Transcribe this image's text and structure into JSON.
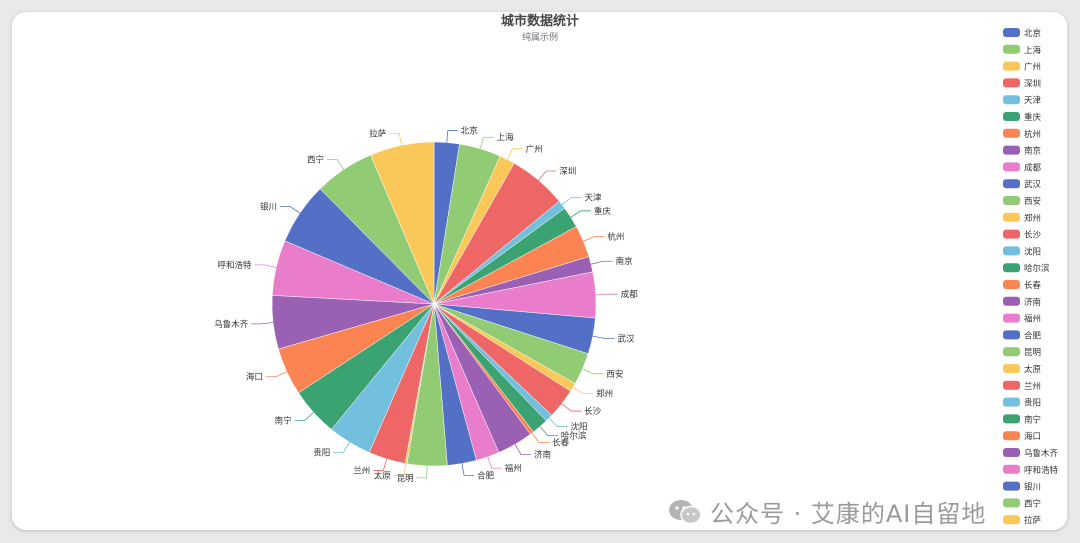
{
  "watermark": "公众号 · 艾康的AI自留地",
  "chart_data": {
    "type": "pie",
    "title": "城市数据统计",
    "subtitle": "纯属示例",
    "legend_position": "right",
    "categories": [
      "北京",
      "上海",
      "广州",
      "深圳",
      "天津",
      "重庆",
      "杭州",
      "南京",
      "成都",
      "武汉",
      "西安",
      "郑州",
      "长沙",
      "沈阳",
      "哈尔滨",
      "长春",
      "济南",
      "福州",
      "合肥",
      "昆明",
      "太原",
      "兰州",
      "贵阳",
      "南宁",
      "海口",
      "乌鲁木齐",
      "呼和浩特",
      "银川",
      "西宁",
      "拉萨"
    ],
    "values": [
      26,
      43,
      16,
      60,
      9,
      22,
      33,
      16,
      47,
      37,
      33,
      9,
      31,
      8,
      17,
      4,
      37,
      24,
      30,
      41,
      2,
      38,
      45,
      50,
      49,
      55,
      57,
      64,
      62,
      66
    ],
    "colors": [
      "#5470c6",
      "#91cc75",
      "#fac858",
      "#ee6666",
      "#73c0de",
      "#3ba272",
      "#fc8452",
      "#9a60b4",
      "#ea7ccc"
    ]
  }
}
